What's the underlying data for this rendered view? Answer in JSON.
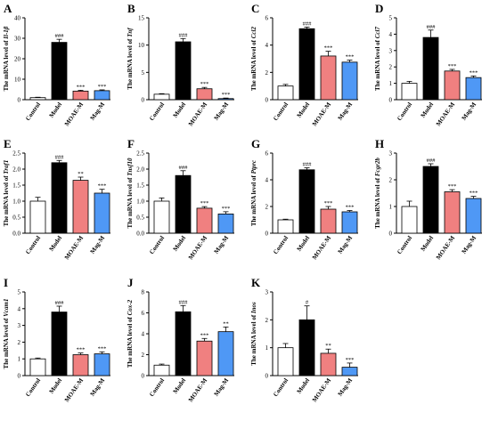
{
  "figure": {
    "common": {
      "categories": [
        "Control",
        "Model",
        "MOAE-M",
        "Mag-M"
      ],
      "bar_colors": [
        "#ffffff",
        "#000000",
        "#f08080",
        "#4f98f5"
      ],
      "ylabel_prefix": "The mRNA level of "
    }
  },
  "chart_data": [
    {
      "type": "bar",
      "panel": "A",
      "gene": "Il-1β",
      "categories": [
        "Control",
        "Model",
        "MOAE-M",
        "Mag-M"
      ],
      "values": [
        1.0,
        28,
        4.2,
        4.4
      ],
      "errors": [
        0.2,
        1.5,
        0.4,
        0.4
      ],
      "significance": [
        "",
        "###",
        "***",
        "***"
      ],
      "ylim": [
        0,
        40
      ],
      "yticks": [
        "0",
        "10",
        "20",
        "30",
        "40"
      ],
      "ylabel": "The mRNA level of Il-1β"
    },
    {
      "type": "bar",
      "panel": "B",
      "gene": "Tnf",
      "categories": [
        "Control",
        "Model",
        "MOAE-M",
        "Mag-M"
      ],
      "values": [
        1.0,
        10.6,
        2.0,
        0.2
      ],
      "errors": [
        0.1,
        0.6,
        0.25,
        0.1
      ],
      "significance": [
        "",
        "###",
        "***",
        "***"
      ],
      "ylim": [
        0,
        15
      ],
      "yticks": [
        "0",
        "5",
        "10",
        "15"
      ],
      "ylabel": "The mRNA level of Tnf"
    },
    {
      "type": "bar",
      "panel": "C",
      "gene": "Ccl2",
      "categories": [
        "Control",
        "Model",
        "MOAE-M",
        "Mag-M"
      ],
      "values": [
        1.0,
        5.2,
        3.2,
        2.75
      ],
      "errors": [
        0.12,
        0.12,
        0.35,
        0.15
      ],
      "significance": [
        "",
        "###",
        "***",
        "***"
      ],
      "ylim": [
        0,
        6
      ],
      "yticks": [
        "0",
        "2",
        "4",
        "6"
      ],
      "ylabel": "The mRNA level of Ccl2"
    },
    {
      "type": "bar",
      "panel": "D",
      "gene": "Ccl7",
      "categories": [
        "Control",
        "Model",
        "MOAE-M",
        "Mag-M"
      ],
      "values": [
        1.0,
        3.8,
        1.75,
        1.35
      ],
      "errors": [
        0.12,
        0.45,
        0.1,
        0.1
      ],
      "significance": [
        "",
        "###",
        "***",
        "***"
      ],
      "ylim": [
        0,
        5
      ],
      "yticks": [
        "0",
        "1",
        "2",
        "3",
        "4",
        "5"
      ],
      "ylabel": "The mRNA level of Ccl7"
    },
    {
      "type": "bar",
      "panel": "E",
      "gene": "Traf1",
      "categories": [
        "Control",
        "Model",
        "MOAE-M",
        "Mag-M"
      ],
      "values": [
        1.0,
        2.2,
        1.65,
        1.25
      ],
      "errors": [
        0.12,
        0.07,
        0.1,
        0.12
      ],
      "significance": [
        "",
        "###",
        "**",
        "***"
      ],
      "ylim": [
        0,
        2.5
      ],
      "yticks": [
        "0.0",
        "0.5",
        "1.0",
        "1.5",
        "2.0",
        "2.5"
      ],
      "ylabel": "The mRNA level of Traf1"
    },
    {
      "type": "bar",
      "panel": "F",
      "gene": "Tnsf10",
      "categories": [
        "Control",
        "Model",
        "MOAE-M",
        "Mag-M"
      ],
      "values": [
        1.0,
        1.8,
        0.78,
        0.6
      ],
      "errors": [
        0.1,
        0.15,
        0.05,
        0.07
      ],
      "significance": [
        "",
        "###",
        "***",
        "***"
      ],
      "ylim": [
        0,
        2.5
      ],
      "yticks": [
        "0.0",
        "0.5",
        "1.0",
        "1.5",
        "2.0",
        "2.5"
      ],
      "ylabel": "The mRNA level of Tnsf10"
    },
    {
      "type": "bar",
      "panel": "G",
      "gene": "Ptprc",
      "categories": [
        "Control",
        "Model",
        "MOAE-M",
        "Mag-M"
      ],
      "values": [
        1.0,
        4.75,
        1.8,
        1.6
      ],
      "errors": [
        0.05,
        0.15,
        0.2,
        0.1
      ],
      "significance": [
        "",
        "###",
        "***",
        "***"
      ],
      "ylim": [
        0,
        6
      ],
      "yticks": [
        "0",
        "2",
        "4",
        "6"
      ],
      "ylabel": "The mRNA level of Ptprc"
    },
    {
      "type": "bar",
      "panel": "H",
      "gene": "Fcgr2b",
      "categories": [
        "Control",
        "Model",
        "MOAE-M",
        "Mag-M"
      ],
      "values": [
        1.0,
        2.5,
        1.55,
        1.3
      ],
      "errors": [
        0.2,
        0.1,
        0.08,
        0.08
      ],
      "significance": [
        "",
        "###",
        "***",
        "***"
      ],
      "ylim": [
        0,
        3
      ],
      "yticks": [
        "0",
        "1",
        "2",
        "3"
      ],
      "ylabel": "The mRNA level of Fcgr2b"
    },
    {
      "type": "bar",
      "panel": "I",
      "gene": "Vcam1",
      "categories": [
        "Control",
        "Model",
        "MOAE-M",
        "Mag-M"
      ],
      "values": [
        1.0,
        3.8,
        1.25,
        1.3
      ],
      "errors": [
        0.05,
        0.35,
        0.1,
        0.12
      ],
      "significance": [
        "",
        "###",
        "***",
        "***"
      ],
      "ylim": [
        0,
        5
      ],
      "yticks": [
        "0",
        "1",
        "2",
        "3",
        "4",
        "5"
      ],
      "ylabel": "The mRNA level of Vcam1"
    },
    {
      "type": "bar",
      "panel": "J",
      "gene": "Cox-2",
      "categories": [
        "Control",
        "Model",
        "MOAE-M",
        "Mag-M"
      ],
      "values": [
        1.0,
        6.1,
        3.3,
        4.2
      ],
      "errors": [
        0.1,
        0.6,
        0.25,
        0.45
      ],
      "significance": [
        "",
        "###",
        "***",
        "**"
      ],
      "ylim": [
        0,
        8
      ],
      "yticks": [
        "0",
        "2",
        "4",
        "6",
        "8"
      ],
      "ylabel": "The mRNA level of Cox-2"
    },
    {
      "type": "bar",
      "panel": "K",
      "gene": "Inos",
      "categories": [
        "Control",
        "Model",
        "MOAE-M",
        "Mag-M"
      ],
      "values": [
        1.0,
        2.0,
        0.8,
        0.3
      ],
      "errors": [
        0.15,
        0.5,
        0.15,
        0.15
      ],
      "significance": [
        "",
        "#",
        "**",
        "***"
      ],
      "ylim": [
        0,
        3
      ],
      "yticks": [
        "0",
        "1",
        "2",
        "3"
      ],
      "ylabel": "The mRNA level of Inos"
    }
  ]
}
